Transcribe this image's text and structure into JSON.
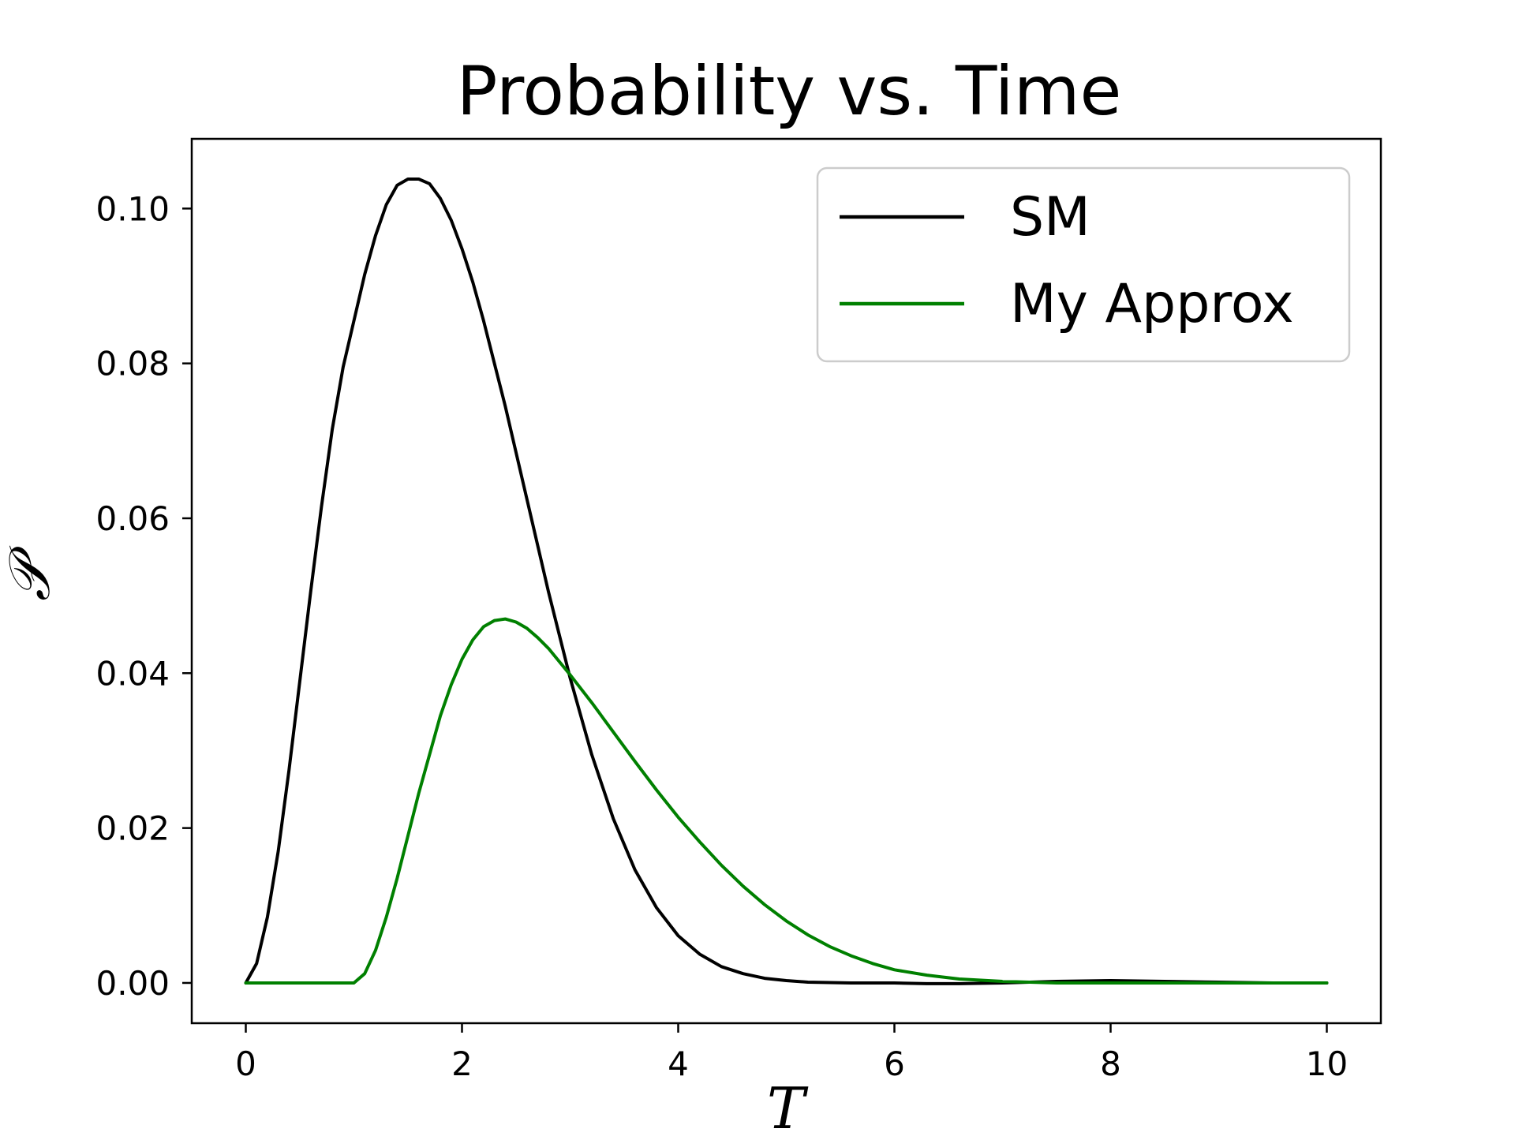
{
  "chart_data": {
    "type": "line",
    "title": "Probability vs. Time",
    "xlabel": "T",
    "ylabel": "𝒫",
    "xlim": [
      -0.5,
      10.5
    ],
    "ylim": [
      -0.0052,
      0.109
    ],
    "xticks": [
      0,
      2,
      4,
      6,
      8,
      10
    ],
    "xtick_labels": [
      "0",
      "2",
      "4",
      "6",
      "8",
      "10"
    ],
    "yticks": [
      0.0,
      0.02,
      0.04,
      0.06,
      0.08,
      0.1
    ],
    "ytick_labels": [
      "0.00",
      "0.02",
      "0.04",
      "0.06",
      "0.08",
      "0.10"
    ],
    "grid": false,
    "legend_position": "top-right",
    "series": [
      {
        "name": "SM",
        "color": "#000000",
        "x": [
          0,
          0.1,
          0.2,
          0.3,
          0.4,
          0.5,
          0.6,
          0.7,
          0.8,
          0.9,
          1.0,
          1.1,
          1.2,
          1.3,
          1.4,
          1.5,
          1.6,
          1.7,
          1.8,
          1.9,
          2.0,
          2.1,
          2.2,
          2.4,
          2.6,
          2.8,
          3.0,
          3.2,
          3.4,
          3.6,
          3.8,
          4.0,
          4.2,
          4.4,
          4.6,
          4.8,
          5.0,
          5.2,
          5.4,
          5.6,
          5.8,
          6.0,
          6.3,
          6.6,
          7.0,
          7.5,
          8.0,
          8.5,
          9.0,
          9.5,
          10.0
        ],
        "y": [
          0.0,
          0.0025,
          0.0085,
          0.017,
          0.0275,
          0.039,
          0.0505,
          0.0615,
          0.0715,
          0.0795,
          0.0855,
          0.0915,
          0.0965,
          0.1005,
          0.103,
          0.1038,
          0.1038,
          0.1032,
          0.1013,
          0.0985,
          0.0948,
          0.0905,
          0.0855,
          0.0745,
          0.0625,
          0.0505,
          0.0394,
          0.0295,
          0.0212,
          0.0146,
          0.0097,
          0.0061,
          0.0037,
          0.0021,
          0.0012,
          0.0006,
          0.0003,
          0.0001,
          5e-05,
          0.0,
          0.0,
          0.0,
          -0.0001,
          -0.0001,
          0.0,
          0.0002,
          0.0003,
          0.0002,
          0.0001,
          0.0,
          0.0
        ]
      },
      {
        "name": "My Approx",
        "color": "#008000",
        "x": [
          0,
          0.5,
          1.0,
          1.1,
          1.2,
          1.3,
          1.4,
          1.5,
          1.6,
          1.7,
          1.8,
          1.9,
          2.0,
          2.1,
          2.2,
          2.3,
          2.4,
          2.5,
          2.6,
          2.7,
          2.8,
          2.9,
          3.0,
          3.2,
          3.4,
          3.6,
          3.8,
          4.0,
          4.2,
          4.4,
          4.6,
          4.8,
          5.0,
          5.2,
          5.4,
          5.6,
          5.8,
          6.0,
          6.3,
          6.6,
          7.0,
          7.5,
          8.0,
          8.5,
          9.0,
          9.5,
          10.0
        ],
        "y": [
          0.0,
          0.0,
          0.0,
          0.0012,
          0.0042,
          0.0085,
          0.0135,
          0.019,
          0.0245,
          0.0295,
          0.0345,
          0.0385,
          0.0418,
          0.0443,
          0.046,
          0.0468,
          0.047,
          0.0466,
          0.0458,
          0.0446,
          0.0432,
          0.0415,
          0.0398,
          0.0362,
          0.0324,
          0.0286,
          0.0249,
          0.0214,
          0.0182,
          0.0152,
          0.0125,
          0.0101,
          0.008,
          0.0062,
          0.0047,
          0.0035,
          0.0025,
          0.0017,
          0.001,
          0.0005,
          0.0002,
          0.0,
          0.0,
          0.0,
          0.0,
          0.0,
          0.0
        ]
      }
    ]
  }
}
